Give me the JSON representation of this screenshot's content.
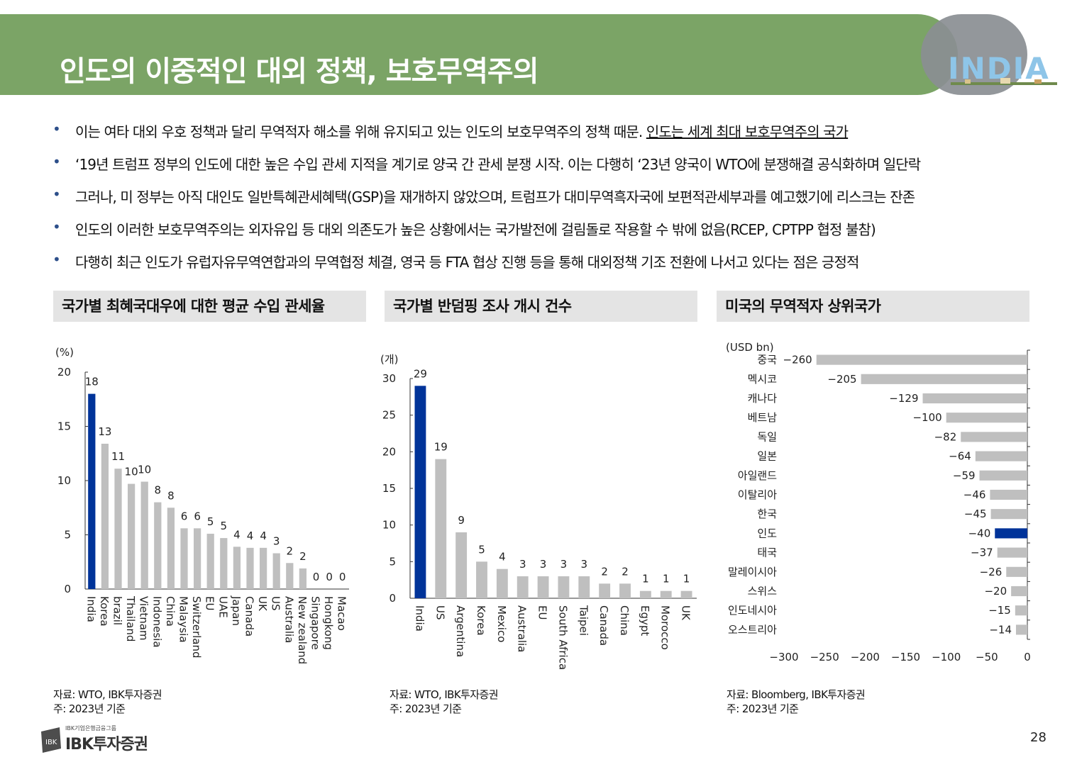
{
  "header": {
    "title": "인도의 이중적인 대외 정책, 보호무역주의",
    "logo_text": "INDIA"
  },
  "bullets": [
    {
      "text": "이는 여타 대외 우호 정책과 달리 무역적자 해소를 위해 유지되고 있는 인도의 보호무역주의 정책 때문. ",
      "underlined": "인도는 세계 최대 보호무역주의 국가"
    },
    {
      "text": "‘19년 트럼프 정부의 인도에 대한 높은 수입 관세 지적을 계기로 양국 간 관세 분쟁 시작. 이는 다행히 ‘23년 양국이 WTO에 분쟁해결 공식화하며 일단락",
      "underlined": ""
    },
    {
      "text": "그러나, 미 정부는 아직 대인도 일반특혜관세혜택(GSP)을 재개하지 않았으며, 트럼프가 대미무역흑자국에 보편적관세부과를 예고했기에 리스크는 잔존",
      "underlined": ""
    },
    {
      "text": "인도의 이러한 보호무역주의는 외자유입 등 대외 의존도가 높은 상황에서는 국가발전에 걸림돌로 작용할 수 밖에 없음(RCEP, CPTPP 협정 불참)",
      "underlined": ""
    },
    {
      "text": "다행히 최근 인도가 유럽자유무역연합과의 무역협정 체결, 영국 등 FTA 협상 진행 등을 통해 대외정책 기조 전환에 나서고 있다는 점은 긍정적",
      "underlined": ""
    }
  ],
  "panels": [
    {
      "title": "국가별 최혜국대우에 대한 평균 수입 관세율",
      "source": "자료: WTO, IBK투자증권",
      "note": "주: 2023년 기준"
    },
    {
      "title": "국가별 반덤핑 조사 개시 건수",
      "source": "자료: WTO, IBK투자증권",
      "note": "주: 2023년 기준"
    },
    {
      "title": "미국의 무역적자 상위국가",
      "source": "자료: Bloomberg, IBK투자증권",
      "note": "주: 2023년 기준"
    }
  ],
  "chart_data": [
    {
      "type": "bar",
      "unit_label": "(%)",
      "categories": [
        "India",
        "Korea",
        "brazil",
        "Thailand",
        "Vietnam",
        "Indonesia",
        "China",
        "Malaysia",
        "Switzerland",
        "EU",
        "UAE",
        "Japan",
        "Canada",
        "UK",
        "US",
        "Australia",
        "New zealand",
        "Singapore",
        "Hongkong",
        "Macao"
      ],
      "values": [
        18,
        13.4,
        11.1,
        9.7,
        9.9,
        8,
        7.5,
        5.6,
        5.6,
        5.1,
        4.7,
        3.9,
        3.8,
        3.8,
        3.3,
        2.4,
        1.9,
        0,
        0,
        0
      ],
      "data_labels": [
        "18",
        "13",
        "11",
        "10",
        "10",
        "8",
        "8",
        "6",
        "6",
        "5",
        "5",
        "4",
        "4",
        "4",
        "3",
        "2",
        "2",
        "0",
        "0",
        "0"
      ],
      "ylim": [
        0,
        20
      ],
      "yticks": [
        0,
        5,
        10,
        15,
        20
      ],
      "highlight_index": 0,
      "colors": {
        "highlight": "#003399",
        "default": "#bfbfbf"
      }
    },
    {
      "type": "bar",
      "unit_label": "(개)",
      "categories": [
        "India",
        "US",
        "Argentina",
        "Korea",
        "Mexico",
        "Australia",
        "EU",
        "South Africa",
        "Taipei",
        "Canada",
        "China",
        "Egypt",
        "Morocco",
        "UK"
      ],
      "values": [
        29,
        19,
        9,
        5,
        4,
        3,
        3,
        3,
        3,
        2,
        2,
        1,
        1,
        1
      ],
      "data_labels": [
        "29",
        "19",
        "9",
        "5",
        "4",
        "3",
        "3",
        "3",
        "3",
        "2",
        "2",
        "1",
        "1",
        "1"
      ],
      "ylim": [
        0,
        30
      ],
      "yticks": [
        0,
        5,
        10,
        15,
        20,
        25,
        30
      ],
      "highlight_index": 0,
      "colors": {
        "highlight": "#003399",
        "default": "#bfbfbf"
      }
    },
    {
      "type": "bar",
      "orientation": "horizontal",
      "unit_label": "(USD bn)",
      "categories": [
        "중국",
        "멕시코",
        "캐나다",
        "베트남",
        "독일",
        "일본",
        "아일랜드",
        "이탈리아",
        "한국",
        "인도",
        "태국",
        "말레이시아",
        "스위스",
        "인도네시아",
        "오스트리아"
      ],
      "values": [
        -260,
        -205,
        -129,
        -100,
        -82,
        -64,
        -59,
        -46,
        -45,
        -40,
        -37,
        -26,
        -20,
        -15,
        -14
      ],
      "data_labels": [
        "−260",
        "−205",
        "−129",
        "−100",
        "−82",
        "−64",
        "−59",
        "−46",
        "−45",
        "−40",
        "−37",
        "−26",
        "−20",
        "−15",
        "−14"
      ],
      "xlim": [
        -300,
        0
      ],
      "xticks": [
        -300,
        -250,
        -200,
        -150,
        -100,
        -50,
        0
      ],
      "xtick_labels": [
        "−300",
        "−250",
        "−200",
        "−150",
        "−100",
        "−50",
        "0"
      ],
      "highlight_index": 9,
      "colors": {
        "highlight": "#003399",
        "default": "#bfbfbf"
      }
    }
  ],
  "footer": {
    "brand_small": "IBK기업은행금융그룹",
    "brand": "IBK투자증권",
    "page_number": "28"
  }
}
